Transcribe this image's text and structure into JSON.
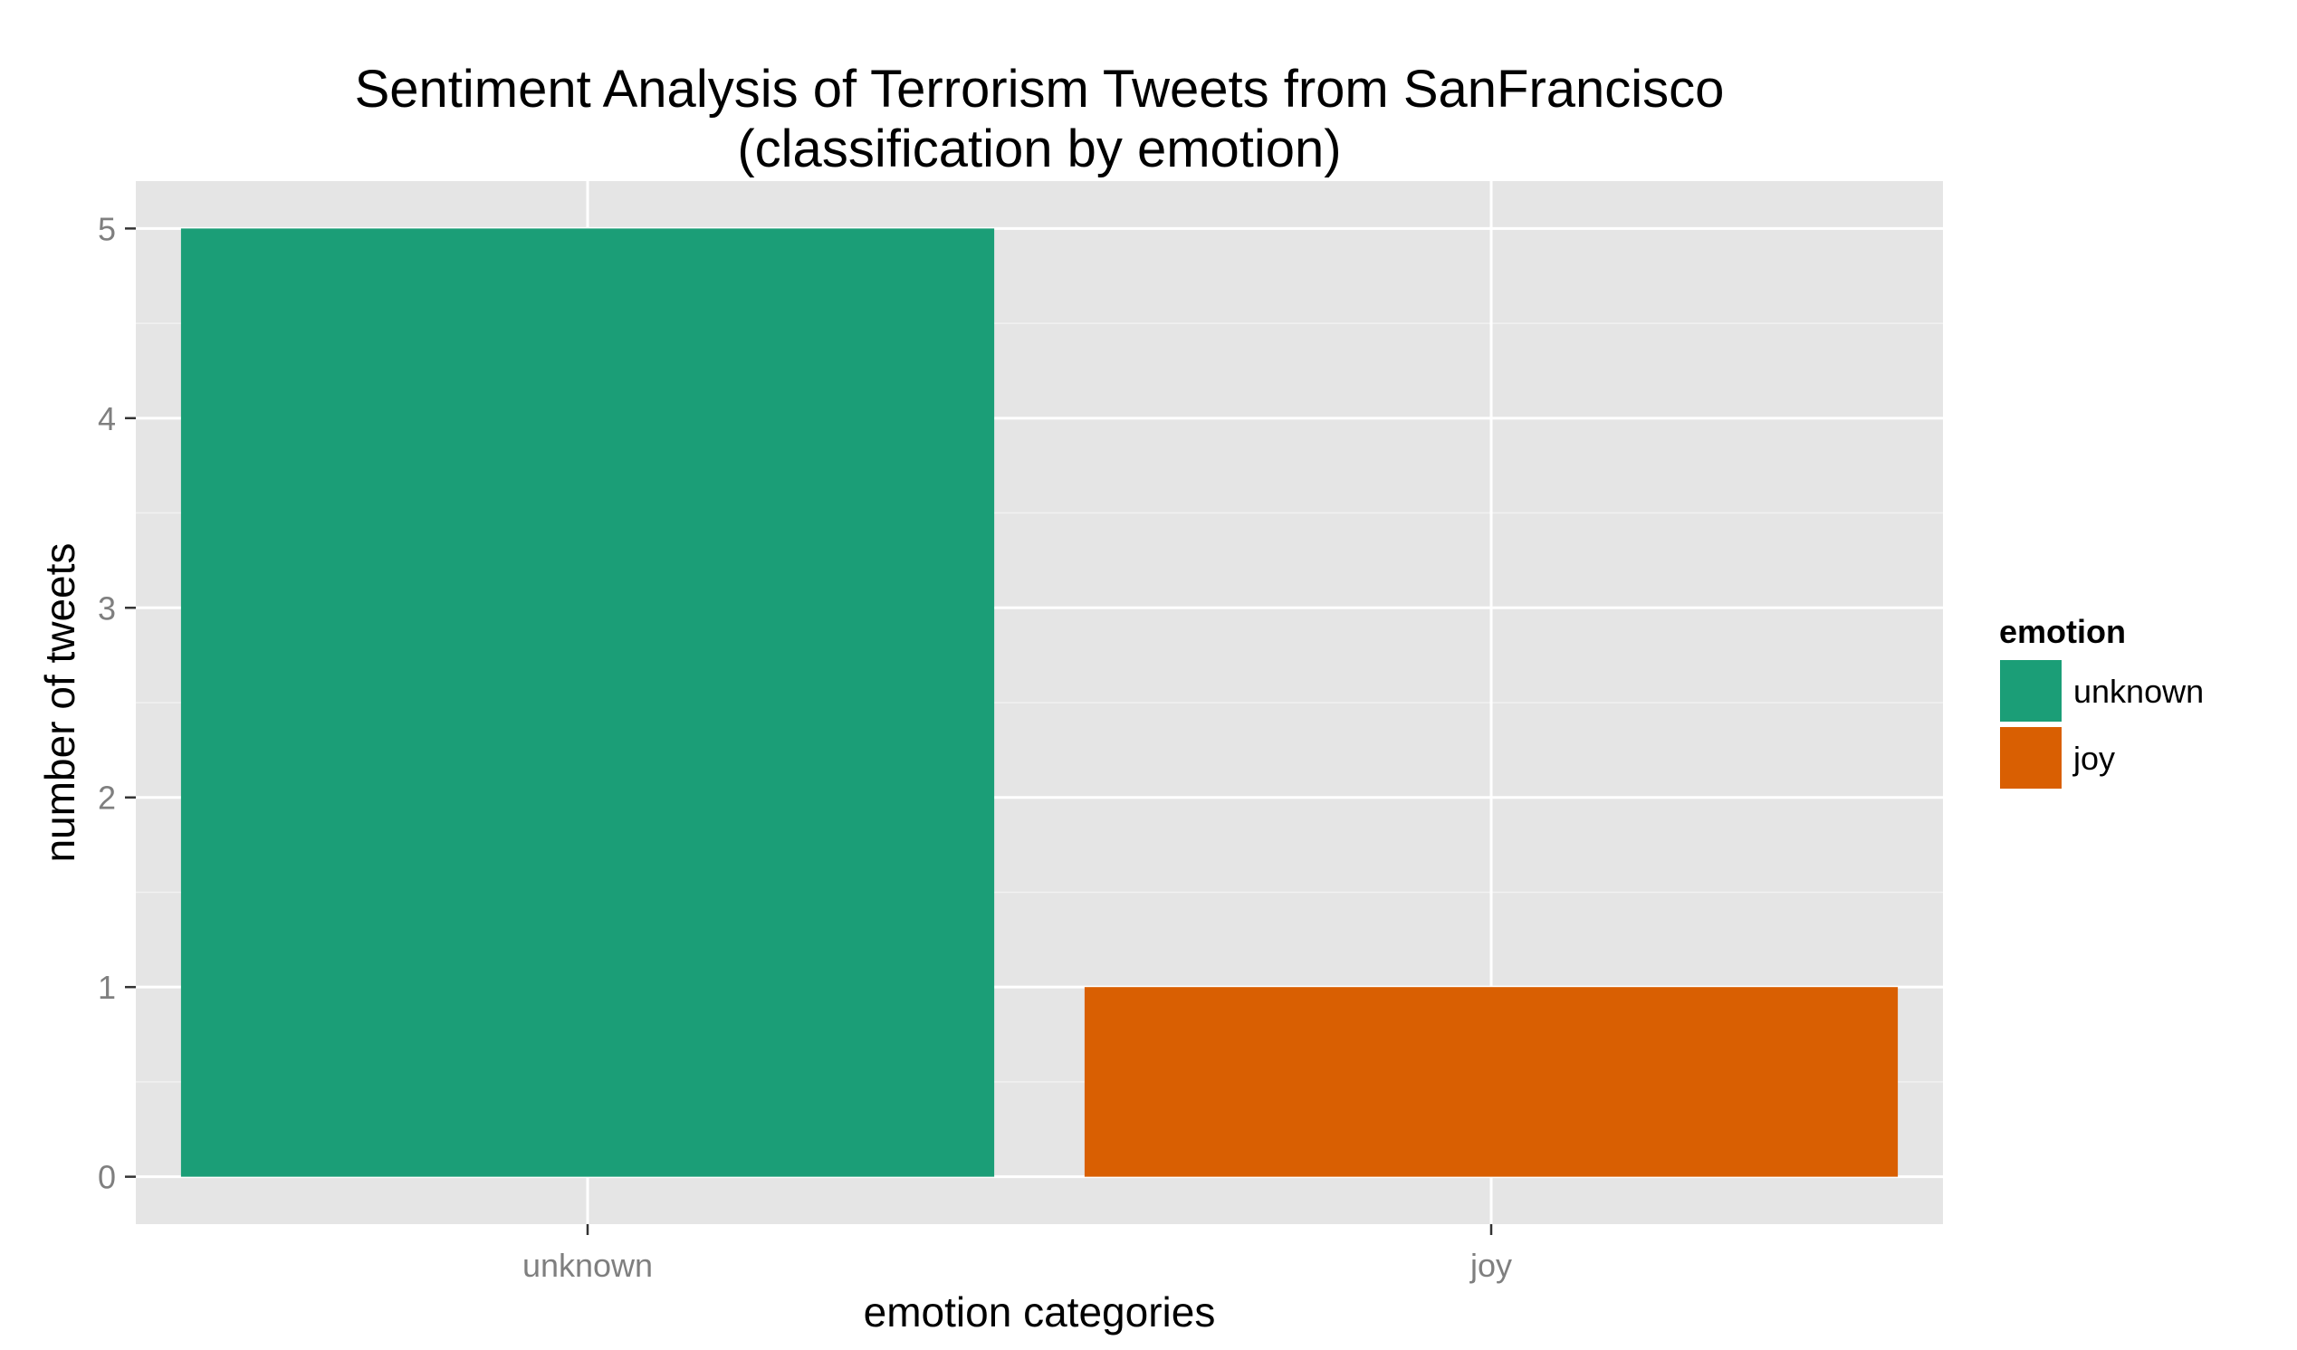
{
  "chart_data": {
    "type": "bar",
    "title": "Sentiment Analysis of Terrorism Tweets from SanFrancisco",
    "subtitle": "(classification by emotion)",
    "xlabel": "emotion categories",
    "ylabel": "number of tweets",
    "categories": [
      "unknown",
      "joy"
    ],
    "values": [
      5,
      1
    ],
    "colors": [
      "#1b9e77",
      "#d95f02"
    ],
    "ylim": [
      -0.25,
      5.25
    ],
    "yticks": [
      0,
      1,
      2,
      3,
      4,
      5
    ],
    "grid": true,
    "legend": {
      "title": "emotion",
      "placement": "right",
      "entries": [
        {
          "label": "unknown",
          "color": "#1b9e77"
        },
        {
          "label": "joy",
          "color": "#d95f02"
        }
      ]
    },
    "panel_background": "#e5e5e5",
    "grid_color": "#ffffff"
  }
}
